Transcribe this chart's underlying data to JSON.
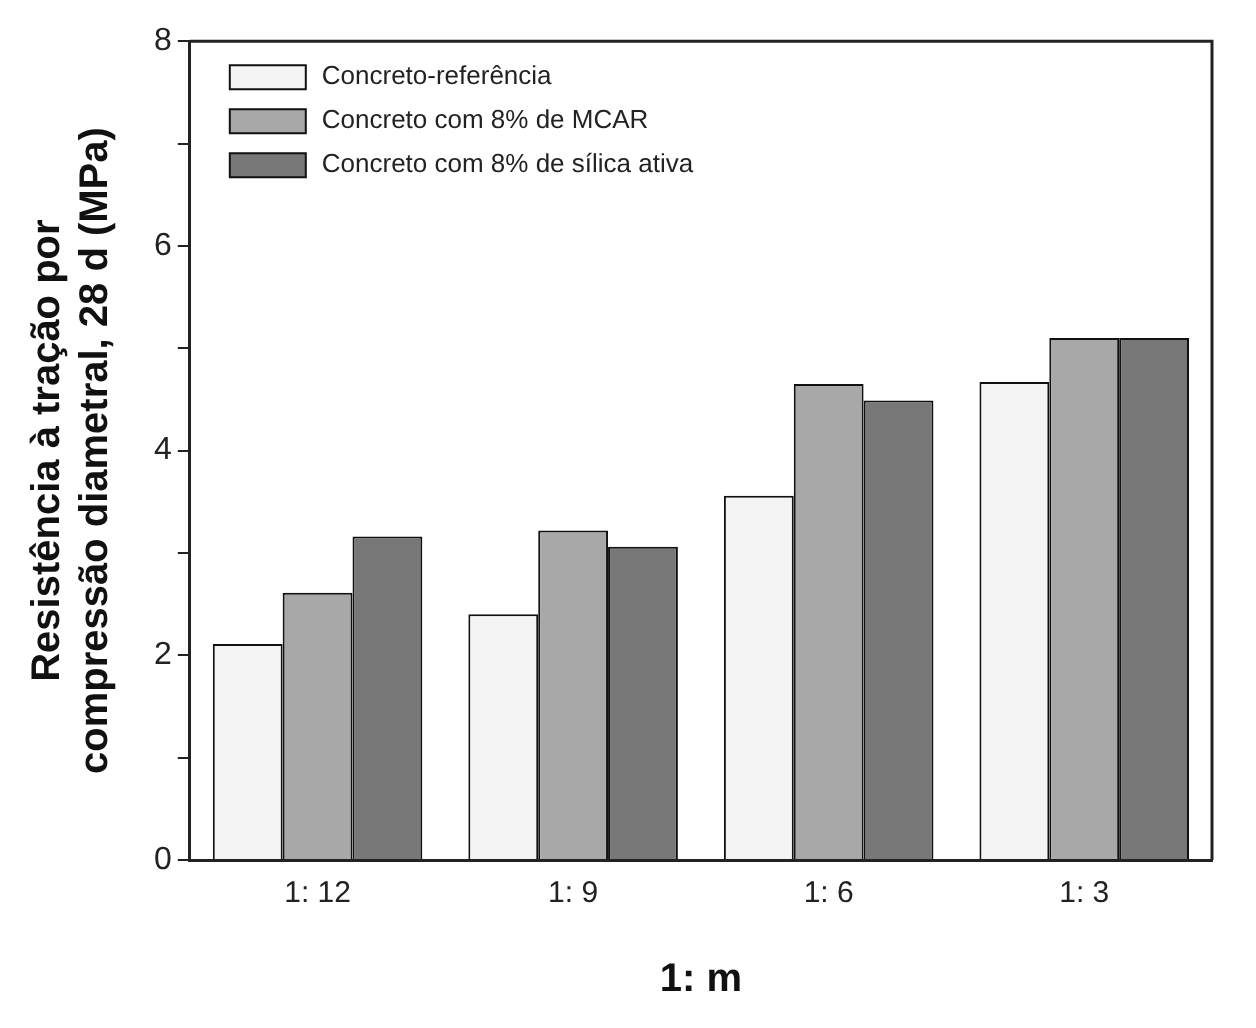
{
  "chart_data": {
    "type": "bar",
    "xlabel": "1: m",
    "ylabel": "Resistência à tração por\ncompressão diametral, 28 d (MPa)",
    "categories": [
      "1: 12",
      "1: 9",
      "1: 6",
      "1: 3"
    ],
    "series": [
      {
        "name": "Concreto-referência",
        "color": "#f4f4f4",
        "values": [
          2.11,
          2.4,
          3.56,
          4.67
        ]
      },
      {
        "name": "Concreto com 8% de MCAR",
        "color": "#a8a8a8",
        "values": [
          2.61,
          3.22,
          4.65,
          5.1
        ]
      },
      {
        "name": "Concreto com 8% de sílica ativa",
        "color": "#787878",
        "values": [
          3.16,
          3.06,
          4.49,
          5.1
        ]
      }
    ],
    "ylim": [
      0,
      8
    ],
    "yticks": [
      0,
      {
        "value": 1,
        "label": null
      },
      2,
      {
        "value": 3,
        "label": null
      },
      4,
      {
        "value": 5,
        "label": null
      },
      6,
      {
        "value": 7,
        "label": null
      },
      8
    ],
    "grid": false,
    "legend": "top left"
  }
}
